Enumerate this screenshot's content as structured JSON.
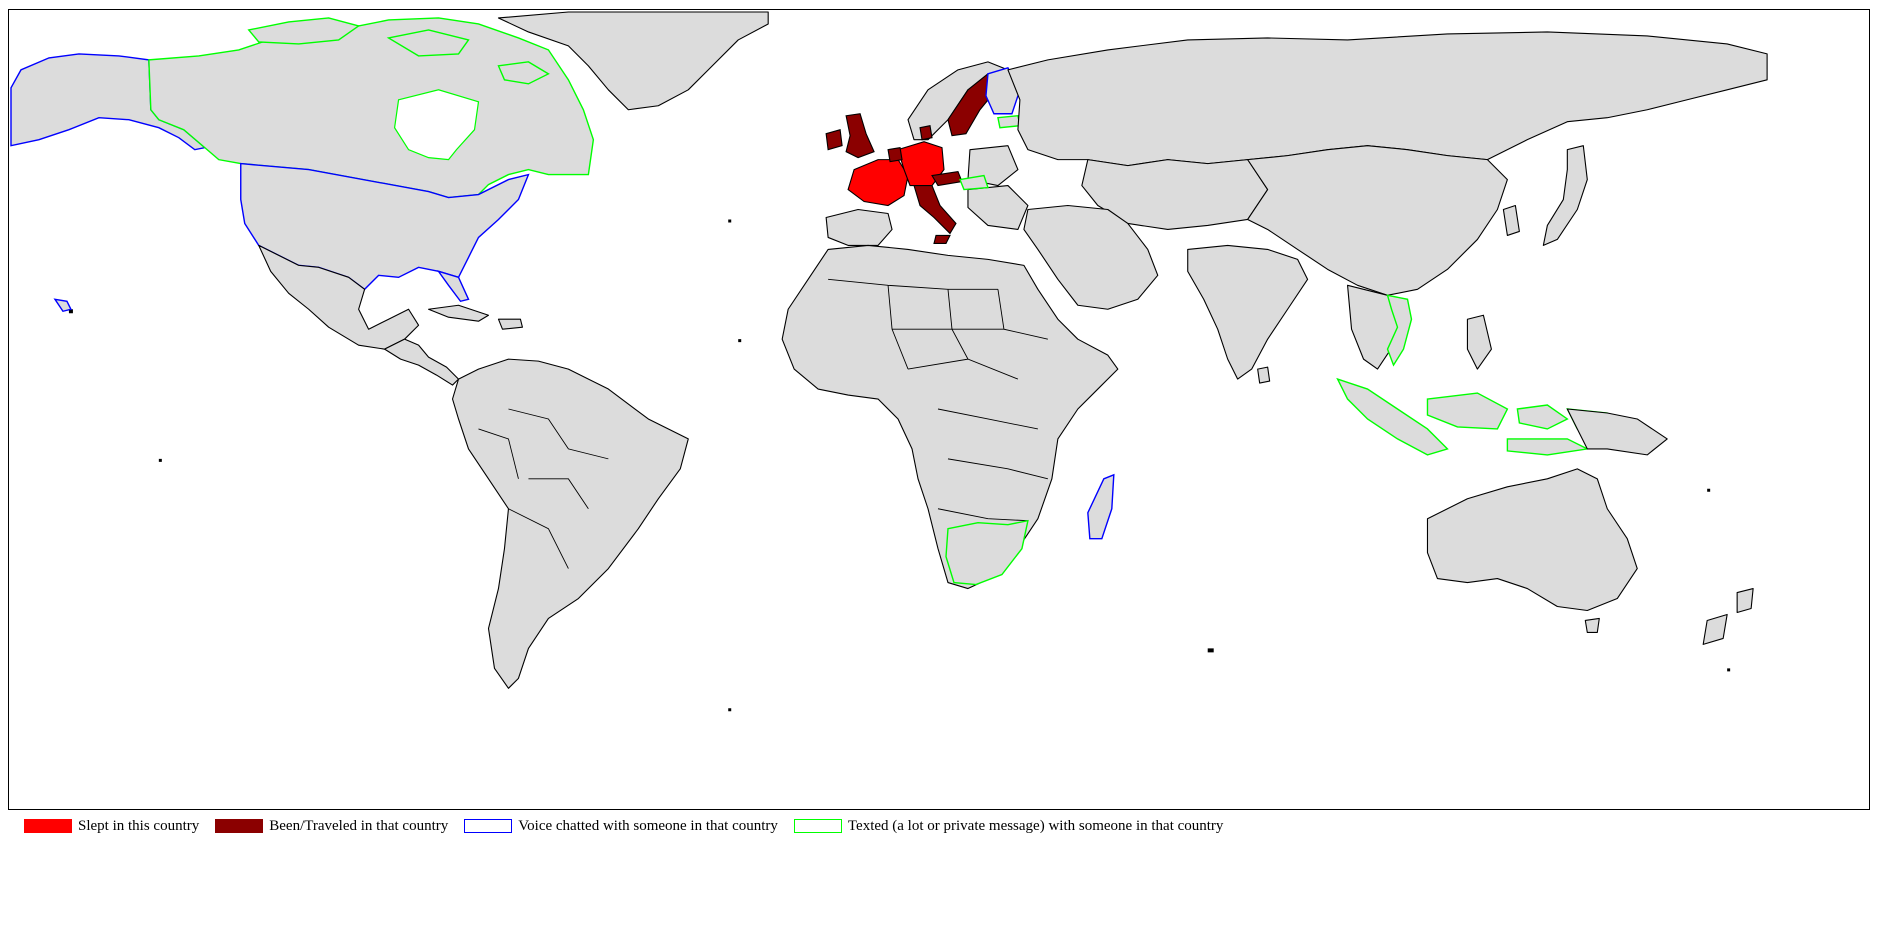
{
  "legend": {
    "items": [
      {
        "label": "Slept in this country",
        "fill": "#ff0000",
        "stroke": "#ff0000"
      },
      {
        "label": "Been/Traveled in that country",
        "fill": "#8b0000",
        "stroke": "#8b0000"
      },
      {
        "label": "Voice chatted with someone in that country",
        "fill": "#ffffff",
        "stroke": "#0000ff"
      },
      {
        "label": "Texted (a lot or private message) with someone in that country",
        "fill": "#ffffff",
        "stroke": "#00ff00"
      }
    ]
  },
  "colors": {
    "land": "#dcdcdc",
    "slept": "#ff0000",
    "been": "#8b0000",
    "voice": "#0000ff",
    "texted": "#00ff00",
    "border": "#000000"
  },
  "countries": {
    "slept": [
      "France",
      "Germany"
    ],
    "been": [
      "United Kingdom",
      "Ireland",
      "Sweden",
      "Italy",
      "Switzerland",
      "Austria",
      "Belgium",
      "Netherlands",
      "Denmark"
    ],
    "voice": [
      "United States",
      "Madagascar",
      "Finland"
    ],
    "texted": [
      "Canada",
      "South Africa",
      "Vietnam",
      "Indonesia",
      "Estonia",
      "Hungary"
    ]
  }
}
